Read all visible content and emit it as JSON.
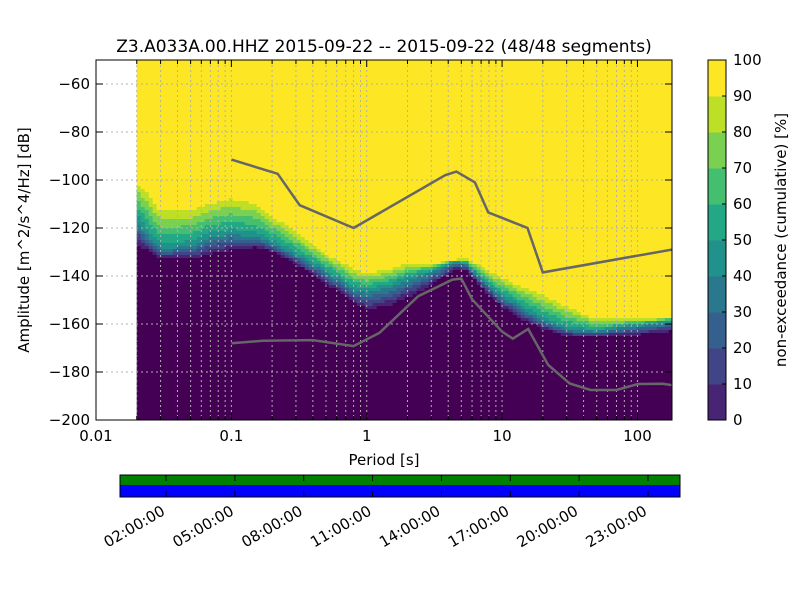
{
  "chart_data": {
    "type": "heatmap",
    "title": "Z3.A033A.00.HHZ   2015-09-22 -- 2015-09-22  (48/48 segments)",
    "xlabel": "Period [s]",
    "ylabel": "Amplitude [m^2/s^4/Hz] [dB]",
    "x_scale": "log",
    "xlim": [
      0.01,
      180
    ],
    "ylim": [
      -200,
      -50
    ],
    "x_ticks": [
      {
        "value": 0.01,
        "label": "0.01"
      },
      {
        "value": 0.1,
        "label": "0.1"
      },
      {
        "value": 1,
        "label": "1"
      },
      {
        "value": 10,
        "label": "10"
      },
      {
        "value": 100,
        "label": "100"
      }
    ],
    "y_ticks": [
      {
        "value": -60,
        "label": "−60"
      },
      {
        "value": -80,
        "label": "−80"
      },
      {
        "value": -100,
        "label": "−100"
      },
      {
        "value": -120,
        "label": "−120"
      },
      {
        "value": -140,
        "label": "−140"
      },
      {
        "value": -160,
        "label": "−160"
      },
      {
        "value": -180,
        "label": "−180"
      },
      {
        "value": -200,
        "label": "−200"
      }
    ],
    "grid": true,
    "data_min_period": 0.02,
    "colorbar": {
      "label": "non-exceedance (cumulative) [%]",
      "range": [
        0,
        100
      ],
      "ticks": [
        "0",
        "10",
        "20",
        "30",
        "40",
        "50",
        "60",
        "70",
        "80",
        "90",
        "100"
      ],
      "colormap": "viridis"
    },
    "noise_model_high": {
      "x": [
        0.1,
        0.22,
        0.32,
        0.8,
        3.8,
        4.6,
        6.3,
        7.9,
        15.4,
        20,
        180
      ],
      "y": [
        -91.5,
        -97.4,
        -110.5,
        -120,
        -98,
        -96.5,
        -101,
        -113.5,
        -120,
        -138.5,
        -129
      ]
    },
    "noise_model_low": {
      "x": [
        0.1,
        0.17,
        0.4,
        0.8,
        1.24,
        2.4,
        4.3,
        5.0,
        6.0,
        10,
        12,
        15.6,
        21.9,
        31.6,
        45,
        70,
        101,
        154,
        180
      ],
      "y": [
        -168,
        -167,
        -166.7,
        -169.2,
        -163.7,
        -148.4,
        -141.5,
        -141.1,
        -149.7,
        -163.2,
        -166.1,
        -162.1,
        -177.1,
        -184.8,
        -187.5,
        -187.5,
        -185,
        -184.9,
        -185.5
      ]
    },
    "percentile_bands": {
      "x": [
        0.02,
        0.025,
        0.03,
        0.05,
        0.07,
        0.1,
        0.15,
        0.2,
        0.3,
        0.5,
        0.8,
        1.0,
        1.5,
        2,
        3,
        4,
        4.6,
        5.5,
        7,
        10,
        15,
        20,
        30,
        50,
        80,
        120,
        180
      ],
      "p5": [
        -127,
        -130,
        -133,
        -133,
        -131,
        -129,
        -128,
        -130,
        -135,
        -143,
        -151,
        -154,
        -152,
        -149,
        -144,
        -139,
        -137,
        -138,
        -145,
        -153,
        -159,
        -162,
        -165,
        -165,
        -165,
        -164,
        -163
      ],
      "p50": [
        -116,
        -124,
        -128,
        -127,
        -123,
        -122,
        -123,
        -126,
        -131,
        -138,
        -145,
        -146,
        -144,
        -141,
        -138,
        -135,
        -134,
        -135,
        -141,
        -148,
        -154,
        -158,
        -162,
        -163,
        -161,
        -160,
        -159
      ],
      "p95": [
        -101,
        -107,
        -113,
        -113,
        -110,
        -108,
        -110,
        -115,
        -122,
        -131,
        -137,
        -139,
        -137,
        -135,
        -135,
        -134,
        -133,
        -133,
        -136,
        -141,
        -145,
        -148,
        -153,
        -158,
        -158,
        -158,
        -157
      ]
    }
  },
  "timeline": {
    "top_color": "#008000",
    "bottom_color": "#0000ff",
    "tick_labels": [
      "02:00:00",
      "05:00:00",
      "08:00:00",
      "11:00:00",
      "14:00:00",
      "17:00:00",
      "20:00:00",
      "23:00:00"
    ]
  }
}
